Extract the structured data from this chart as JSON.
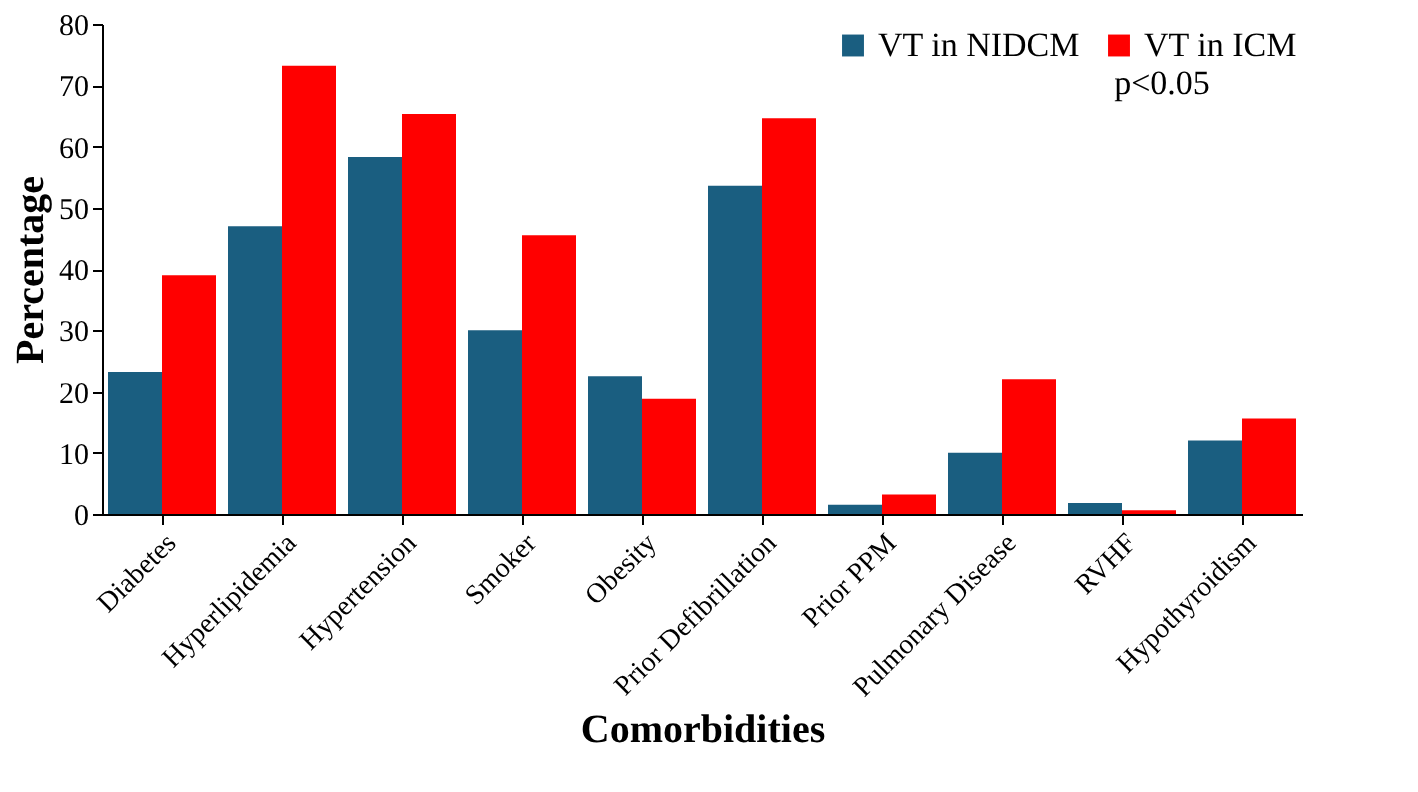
{
  "chart_data": {
    "type": "bar",
    "xlabel": "Comorbidities",
    "ylabel": "Percentage",
    "categories": [
      "Diabetes",
      "Hyperlipidemia",
      "Hypertension",
      "Smoker",
      "Obesity",
      "Prior Defibrillation",
      "Prior PPM",
      "Pulmonary Disease",
      "RVHF",
      "Hypothyroidism"
    ],
    "series": [
      {
        "name": "VT in NIDCM",
        "color": "#1a5e80",
        "values": [
          23.2,
          47,
          58.3,
          30,
          22.5,
          53.6,
          1.5,
          10,
          1.8,
          12
        ]
      },
      {
        "name": "VT in ICM",
        "color": "#ff0000",
        "values": [
          39,
          73.2,
          65.3,
          45.5,
          18.8,
          64.6,
          3.2,
          22,
          0.6,
          15.6
        ]
      }
    ],
    "ylim": [
      0,
      80
    ],
    "yticks": [
      0,
      10,
      20,
      30,
      40,
      50,
      60,
      70,
      80
    ],
    "annotations": [
      "p<0.05"
    ],
    "legend": "top right",
    "grid": false
  }
}
